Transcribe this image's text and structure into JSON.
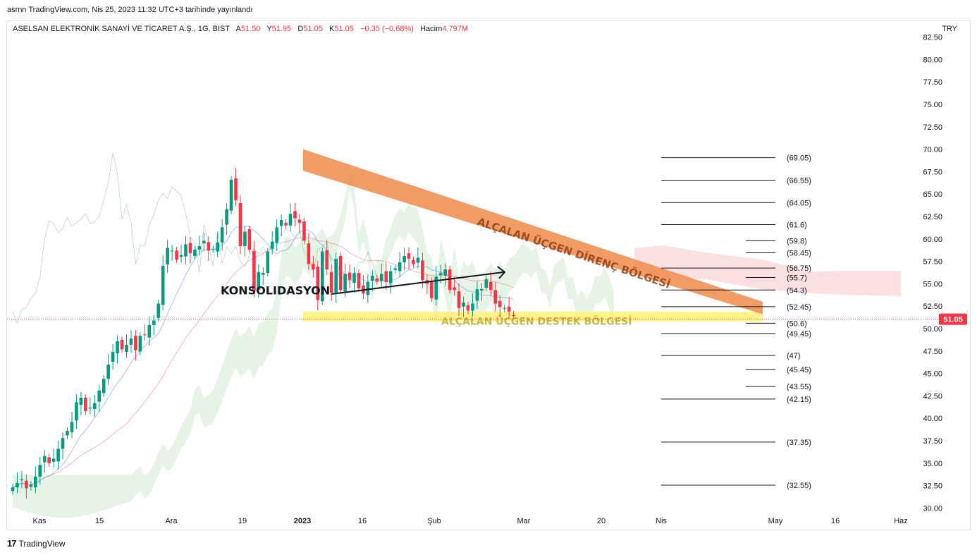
{
  "published_line": "asrnn TradingView.com, Nis 25, 2023 11:32 UTC+3 tarihinde yayınlandı",
  "legend": {
    "symbol": "ASELSAN ELEKTRONİK SANAYİ VE TİCARET A.Ş., 1G, BIST",
    "open_label": "A",
    "open": "51.50",
    "high_label": "Y",
    "high": "51.95",
    "low_label": "D",
    "low": "51.05",
    "close_label": "K",
    "close": "51.05",
    "change": "−0.35 (−0.68%)",
    "volume_label": "Hacim",
    "volume": "4.797M"
  },
  "currency": "TRY",
  "brand": {
    "logo": "17",
    "name": "TradingView"
  },
  "colors": {
    "up": "#089981",
    "down": "#f23645",
    "resistance": "#f0894a",
    "support": "#fff176",
    "cloud_green": "#a5d6a7",
    "cloud_red": "#f8bbbb",
    "price_tag": "#f23645"
  },
  "chart_data": {
    "type": "candlestick",
    "y_axis": {
      "ticks": [
        "82.50",
        "80.00",
        "77.50",
        "75.00",
        "72.50",
        "70.00",
        "67.50",
        "65.00",
        "62.50",
        "60.00",
        "57.50",
        "55.00",
        "52.50",
        "50.00",
        "47.50",
        "45.00",
        "42.50",
        "40.00",
        "37.50",
        "35.00",
        "32.50",
        "30.00"
      ],
      "range": [
        30,
        82.5
      ]
    },
    "x_axis": {
      "labels": [
        "Kas",
        "15",
        "Ara",
        "19",
        "2023",
        "16",
        "Şub",
        "Mar",
        "20",
        "Nis",
        "May",
        "16",
        "Haz"
      ],
      "bold": [
        "2023"
      ]
    },
    "last_price": "51.05",
    "ohlc_last": {
      "open": 51.5,
      "high": 51.95,
      "low": 51.05,
      "close": 51.05
    },
    "levels": [
      {
        "label": "(69.05)",
        "value": 69.05
      },
      {
        "label": "(66.55)",
        "value": 66.55
      },
      {
        "label": "(64.05)",
        "value": 64.05
      },
      {
        "label": "(61.6)",
        "value": 61.6
      },
      {
        "label": "(59.8)",
        "value": 59.8
      },
      {
        "label": "(58.45)",
        "value": 58.45
      },
      {
        "label": "(56.75)",
        "value": 56.75
      },
      {
        "label": "(55.7)",
        "value": 55.7
      },
      {
        "label": "(54.3)",
        "value": 54.3
      },
      {
        "label": "(52.45)",
        "value": 52.45
      },
      {
        "label": "(50.6)",
        "value": 50.6
      },
      {
        "label": "(49.45)",
        "value": 49.45
      },
      {
        "label": "(47)",
        "value": 47
      },
      {
        "label": "(45.45)",
        "value": 45.45
      },
      {
        "label": "(43.55)",
        "value": 43.55
      },
      {
        "label": "(42.15)",
        "value": 42.15
      },
      {
        "label": "(37.35)",
        "value": 37.35
      },
      {
        "label": "(32.55)",
        "value": 32.55
      }
    ],
    "annotations": {
      "resistance": "ALÇALAN ÜÇGEN DİRENÇ BÖLGESİ",
      "support": "ALÇALAN ÜÇGEN DESTEK BÖLGESİ",
      "consolidation": "KONSOLIDASYON"
    },
    "resistance_band": {
      "start": [
        70.0,
        67.6
      ],
      "end": [
        53.0,
        51.6
      ]
    },
    "support_band": [
      50.8,
      51.9
    ],
    "closes": [
      32.3,
      32.8,
      33.2,
      32.2,
      32.6,
      33.5,
      34.8,
      35.8,
      35.0,
      35.5,
      36.6,
      37.8,
      38.6,
      39.6,
      41.8,
      42.3,
      40.8,
      41.2,
      41.7,
      43.1,
      44.4,
      46.0,
      47.4,
      48.6,
      47.7,
      48.2,
      48.9,
      47.6,
      49.2,
      49.3,
      50.4,
      50.9,
      52.8,
      57.0,
      59.0,
      58.7,
      57.7,
      58.2,
      59.4,
      58.4,
      58.8,
      59.2,
      59.8,
      58.7,
      58.9,
      59.6,
      61.3,
      63.3,
      66.6,
      64.3,
      59.2,
      60.8,
      58.8,
      54.2,
      56.3,
      56.2,
      58.6,
      59.7,
      61.3,
      62.1,
      61.5,
      62.8,
      62.3,
      61.8,
      59.8,
      57.2,
      56.6,
      53.2,
      58.6,
      56.6,
      54.0,
      57.8,
      54.3,
      56.1,
      55.4,
      56.2,
      54.5,
      53.9,
      55.2,
      55.9,
      55.3,
      56.1,
      55.2,
      56.4,
      56.7,
      57.4,
      58.1,
      57.8,
      57.2,
      57.9,
      55.4,
      55.0,
      53.4,
      55.8,
      56.2,
      56.6,
      54.3,
      54.3,
      52.3,
      52.9,
      52.0,
      52.8,
      54.4,
      54.4,
      55.5,
      54.3,
      52.8,
      52.4,
      52.3,
      51.9,
      51.4
    ]
  }
}
